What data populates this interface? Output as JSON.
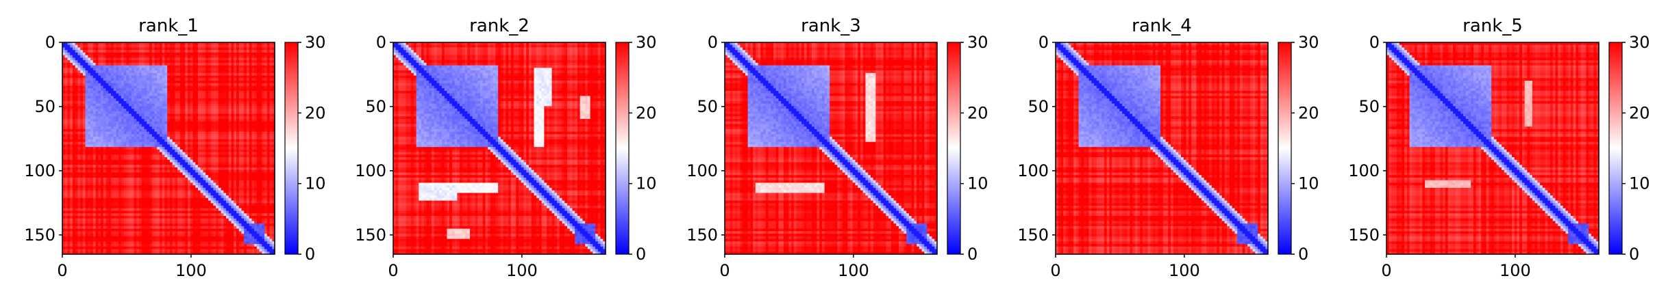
{
  "chart_data": [
    {
      "type": "heatmap",
      "title": "rank_1",
      "x_ticks": [
        0,
        100
      ],
      "y_ticks": [
        0,
        50,
        100,
        150
      ],
      "xlim": [
        0,
        165
      ],
      "ylim": [
        165,
        0
      ],
      "colorbar": {
        "range": [
          0,
          30
        ],
        "ticks": [
          0,
          10,
          20,
          30
        ],
        "colormap": "bwr"
      },
      "domain_block": {
        "start": 18,
        "end": 82
      },
      "extra_blue_patches": []
    },
    {
      "type": "heatmap",
      "title": "rank_2",
      "x_ticks": [
        0,
        100
      ],
      "y_ticks": [
        0,
        50,
        100,
        150
      ],
      "xlim": [
        0,
        165
      ],
      "ylim": [
        165,
        0
      ],
      "colorbar": {
        "range": [
          0,
          30
        ],
        "ticks": [
          0,
          10,
          20,
          30
        ],
        "colormap": "bwr"
      },
      "domain_block": {
        "start": 18,
        "end": 82
      },
      "extra_blue_patches": [
        {
          "x": [
            111,
            118
          ],
          "y": [
            20,
            82
          ],
          "distance": 14
        },
        {
          "x": [
            20,
            50
          ],
          "y": [
            113,
            123
          ],
          "distance": 13
        },
        {
          "x": [
            146,
            153
          ],
          "y": [
            42,
            60
          ],
          "distance": 17
        }
      ]
    },
    {
      "type": "heatmap",
      "title": "rank_3",
      "x_ticks": [
        0,
        100
      ],
      "y_ticks": [
        0,
        50,
        100,
        150
      ],
      "xlim": [
        0,
        165
      ],
      "ylim": [
        165,
        0
      ],
      "colorbar": {
        "range": [
          0,
          30
        ],
        "ticks": [
          0,
          10,
          20,
          30
        ],
        "colormap": "bwr"
      },
      "domain_block": {
        "start": 18,
        "end": 82
      },
      "extra_blue_patches": [
        {
          "x": [
            111,
            118
          ],
          "y": [
            25,
            78
          ],
          "distance": 16
        }
      ]
    },
    {
      "type": "heatmap",
      "title": "rank_4",
      "x_ticks": [
        0,
        100
      ],
      "y_ticks": [
        0,
        50,
        100,
        150
      ],
      "xlim": [
        0,
        165
      ],
      "ylim": [
        165,
        0
      ],
      "colorbar": {
        "range": [
          0,
          30
        ],
        "ticks": [
          0,
          10,
          20,
          30
        ],
        "colormap": "bwr"
      },
      "domain_block": {
        "start": 18,
        "end": 82
      },
      "extra_blue_patches": []
    },
    {
      "type": "heatmap",
      "title": "rank_5",
      "x_ticks": [
        0,
        100
      ],
      "y_ticks": [
        0,
        50,
        100,
        150
      ],
      "xlim": [
        0,
        165
      ],
      "ylim": [
        165,
        0
      ],
      "colorbar": {
        "range": [
          0,
          30
        ],
        "ticks": [
          0,
          10,
          20,
          30
        ],
        "colormap": "bwr"
      },
      "domain_block": {
        "start": 18,
        "end": 82
      },
      "extra_blue_patches": [
        {
          "x": [
            108,
            114
          ],
          "y": [
            30,
            65
          ],
          "distance": 18
        }
      ]
    }
  ]
}
